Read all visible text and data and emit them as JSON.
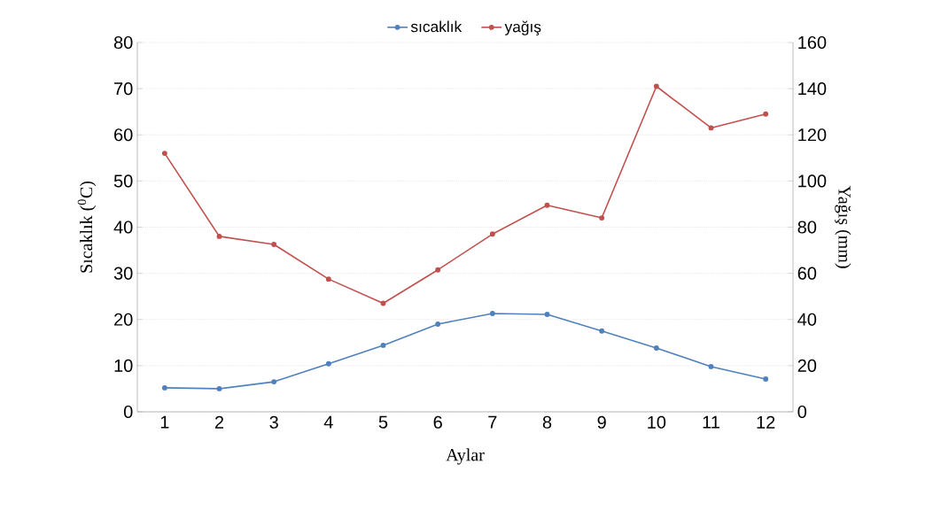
{
  "chart_data": {
    "type": "line",
    "xlabel": "Aylar",
    "ylabel": "Sıcaklık ($^{0}$C)",
    "y2label": "Yağış (mm)",
    "categories": [
      "1",
      "2",
      "3",
      "4",
      "5",
      "6",
      "7",
      "8",
      "9",
      "10",
      "11",
      "12"
    ],
    "series": [
      {
        "name": "sıcaklık",
        "color": "#4f81bd",
        "values": [
          5.2,
          5.0,
          6.5,
          10.4,
          14.4,
          19.0,
          21.3,
          21.1,
          17.5,
          13.8,
          9.8,
          7.1
        ]
      },
      {
        "name": "yağış",
        "color": "#c0504d",
        "axis": "y2",
        "values": [
          112,
          76,
          72.5,
          57.5,
          47,
          61.5,
          77,
          89.5,
          84,
          141,
          123,
          129
        ]
      }
    ],
    "ylim": [
      0,
      80
    ],
    "yticks": [
      0,
      10,
      20,
      30,
      40,
      50,
      60,
      70,
      80
    ],
    "y2lim": [
      0,
      160
    ],
    "y2ticks": [
      0,
      20,
      40,
      60,
      80,
      100,
      120,
      140,
      160
    ],
    "grid": "y",
    "legend": "top",
    "marker": "circle",
    "line_style": "solid"
  }
}
